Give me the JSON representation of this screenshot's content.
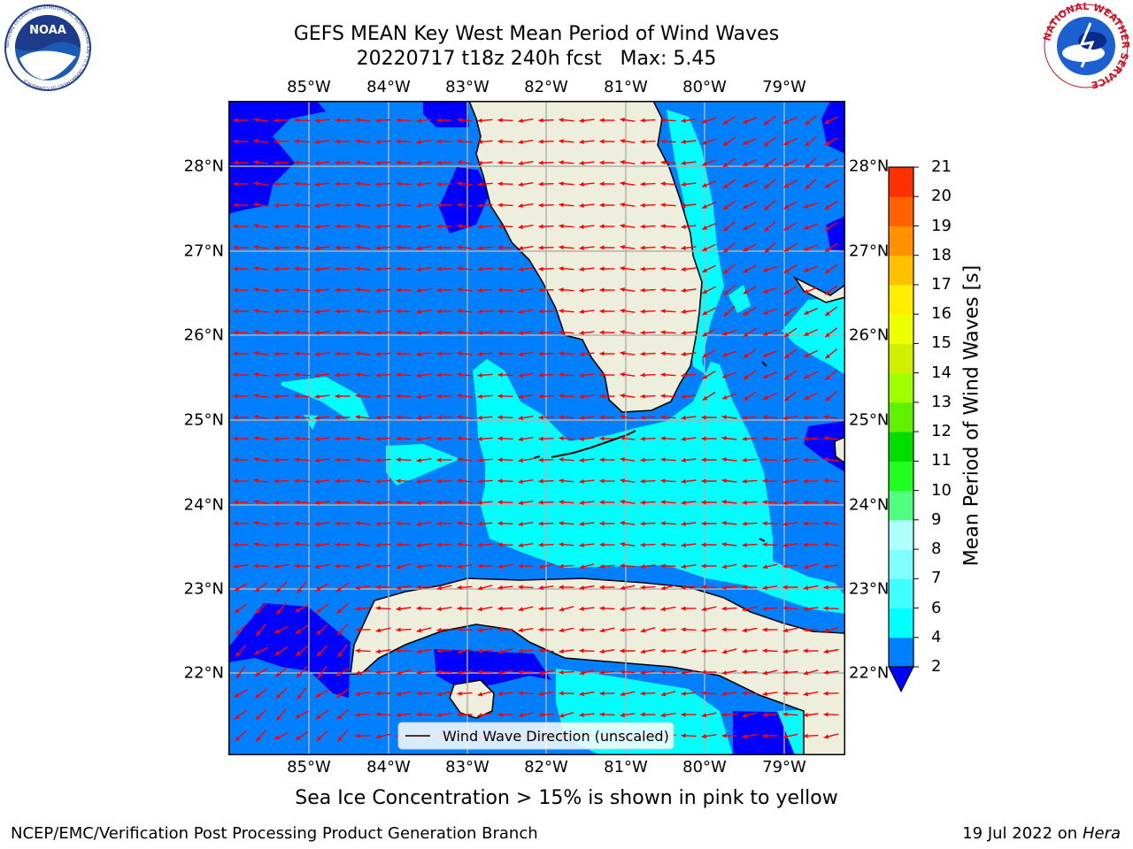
{
  "header": {
    "title_line1": "GEFS MEAN Key West Mean Period of Wind Waves",
    "title_line2": "20220717 t18z 240h fcst   Max: 5.45",
    "left_logo": "NOAA",
    "left_logo_ring_text": "NATIONAL OCEANIC AND ATMOSPHERIC ADMINISTRATION • U.S. DEPARTMENT OF COMMERCE",
    "right_logo_ring_text": "NATIONAL WEATHER SERVICE"
  },
  "map": {
    "lon_labels": [
      "85°W",
      "84°W",
      "83°W",
      "82°W",
      "81°W",
      "80°W",
      "79°W"
    ],
    "lat_labels": [
      "28°N",
      "27°N",
      "26°N",
      "25°N",
      "24°N",
      "23°N",
      "22°N"
    ],
    "legend_label": "Wind Wave Direction (unscaled)",
    "arrow_color": "#ff0000",
    "land_color": "#eeeedd",
    "grid_color": "#b0b0b0"
  },
  "colorbar": {
    "label": "Mean Period of Wind Waves [s]",
    "ticks": [
      "2",
      "4",
      "6",
      "7",
      "8",
      "9",
      "10",
      "11",
      "12",
      "13",
      "14",
      "15",
      "16",
      "17",
      "18",
      "19",
      "20",
      "21"
    ],
    "colors": [
      "#0000ff",
      "#0080ff",
      "#00ffff",
      "#40ffff",
      "#80ffff",
      "#b0ffff",
      "#50ff80",
      "#20ff20",
      "#00dd00",
      "#60f000",
      "#a0ff00",
      "#d0f000",
      "#eeff00",
      "#ffee00",
      "#ffc000",
      "#ff9000",
      "#ff6000",
      "#ff3000",
      "#ff0000"
    ]
  },
  "subtitle": "Sea Ice Concentration > 15% is shown in pink to yellow",
  "footer": {
    "left": "NCEP/EMC/Verification Post Processing Product Generation Branch",
    "date": "19 Jul 2022 on ",
    "host": "Hera"
  }
}
